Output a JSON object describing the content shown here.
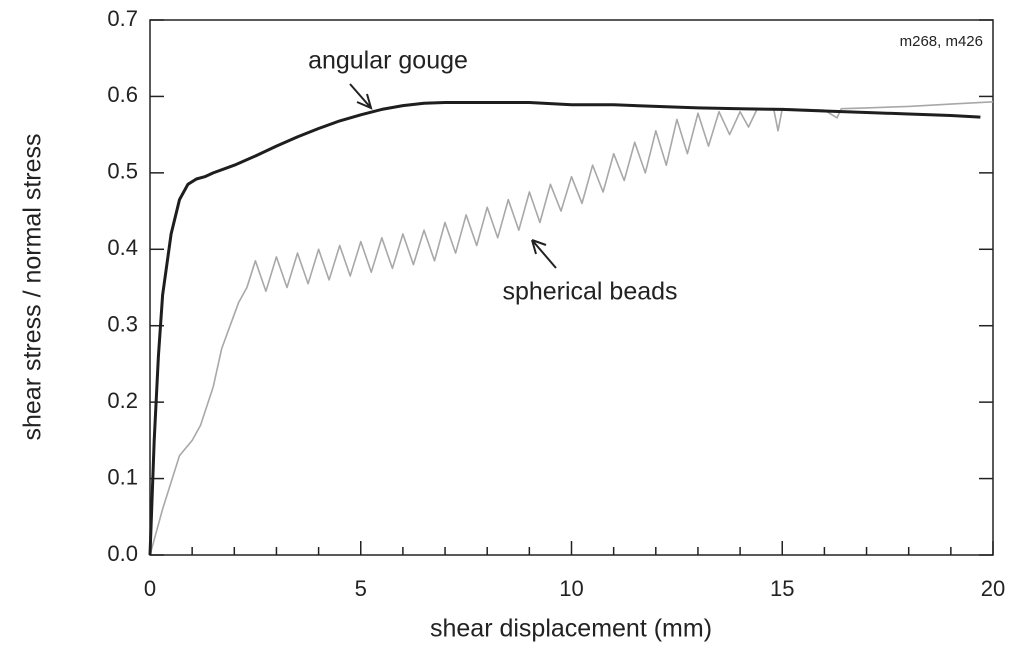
{
  "chart_data": {
    "type": "line",
    "xlabel": "shear displacement (mm)",
    "ylabel": "shear stress / normal stress",
    "annotation": "m268, m426",
    "xlim": [
      0,
      20
    ],
    "ylim": [
      0,
      0.7
    ],
    "xticks": [
      0,
      5,
      10,
      15,
      20
    ],
    "xminorticks": [
      1,
      2,
      3,
      4,
      6,
      7,
      8,
      9,
      11,
      12,
      13,
      14,
      16,
      17,
      18,
      19
    ],
    "yticks": [
      {
        "value": 0,
        "label": "0.0"
      },
      0.1,
      0.2,
      0.3,
      0.4,
      0.5,
      0.6,
      0.7
    ],
    "series": [
      {
        "name": "angular gouge",
        "color": "#1e1e1e",
        "x": [
          0,
          0.1,
          0.2,
          0.3,
          0.5,
          0.7,
          0.9,
          1.1,
          1.3,
          1.5,
          2,
          2.5,
          3,
          3.5,
          4,
          4.5,
          5,
          5.5,
          6,
          6.5,
          7,
          8,
          9,
          10,
          11,
          12,
          13,
          14,
          15,
          16,
          17,
          18,
          19,
          19.7
        ],
        "values": [
          0,
          0.15,
          0.26,
          0.34,
          0.42,
          0.465,
          0.485,
          0.492,
          0.495,
          0.5,
          0.51,
          0.522,
          0.535,
          0.547,
          0.558,
          0.568,
          0.576,
          0.583,
          0.588,
          0.591,
          0.592,
          0.592,
          0.592,
          0.589,
          0.589,
          0.587,
          0.585,
          0.584,
          0.583,
          0.581,
          0.579,
          0.577,
          0.575,
          0.573
        ]
      },
      {
        "name": "spherical beads",
        "color": "#a8a8a8",
        "x": [
          0,
          0.3,
          0.7,
          1.0,
          1.2,
          1.5,
          1.7,
          1.9,
          2.1,
          2.3,
          2.5,
          2.75,
          3.0,
          3.25,
          3.5,
          3.75,
          4.0,
          4.25,
          4.5,
          4.75,
          5.0,
          5.25,
          5.5,
          5.75,
          6.0,
          6.25,
          6.5,
          6.75,
          7.0,
          7.25,
          7.5,
          7.75,
          8.0,
          8.25,
          8.5,
          8.75,
          9.0,
          9.25,
          9.5,
          9.75,
          10.0,
          10.25,
          10.5,
          10.75,
          11.0,
          11.25,
          11.5,
          11.75,
          12.0,
          12.25,
          12.5,
          12.75,
          13.0,
          13.25,
          13.5,
          13.75,
          14.0,
          14.2,
          14.4,
          14.8,
          14.9,
          15.0,
          16.0,
          16.3,
          16.4,
          17,
          18,
          19,
          20
        ],
        "values": [
          0,
          0.06,
          0.13,
          0.15,
          0.17,
          0.22,
          0.27,
          0.3,
          0.33,
          0.35,
          0.385,
          0.345,
          0.39,
          0.35,
          0.395,
          0.355,
          0.4,
          0.36,
          0.405,
          0.365,
          0.41,
          0.37,
          0.415,
          0.375,
          0.42,
          0.38,
          0.425,
          0.385,
          0.435,
          0.395,
          0.445,
          0.405,
          0.455,
          0.415,
          0.465,
          0.425,
          0.475,
          0.435,
          0.485,
          0.45,
          0.495,
          0.46,
          0.51,
          0.475,
          0.525,
          0.49,
          0.54,
          0.5,
          0.555,
          0.51,
          0.57,
          0.525,
          0.578,
          0.535,
          0.58,
          0.55,
          0.58,
          0.56,
          0.583,
          0.583,
          0.555,
          0.584,
          0.582,
          0.572,
          0.584,
          0.585,
          0.587,
          0.59,
          0.593
        ]
      }
    ]
  }
}
